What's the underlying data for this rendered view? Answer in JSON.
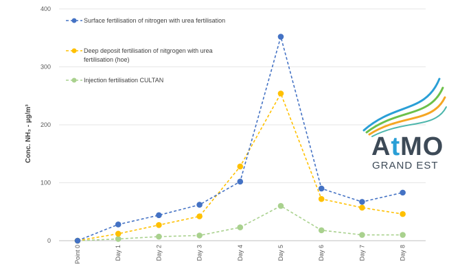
{
  "chart_data": {
    "type": "line",
    "title": "",
    "xlabel": "",
    "ylabel": "Conc. NH₃ - µg/m³",
    "ylim": [
      0,
      400
    ],
    "yticks": [
      "0",
      "100",
      "200",
      "300",
      "400"
    ],
    "categories": [
      "Point 0",
      "Day 1",
      "Day 2",
      "Day 3",
      "Day 4",
      "Day 5",
      "Day 6",
      "Day 7",
      "Day 8"
    ],
    "grid": true,
    "legend_position": "top-left",
    "series": [
      {
        "name": "Surface fertilisation of nitrogen with urea fertilisation",
        "color": "#4472c4",
        "values": [
          0,
          28,
          44,
          62,
          102,
          352,
          90,
          67,
          83
        ]
      },
      {
        "name": "Deep deposit fertilisation of nitgrogen with urea fertilisation (hoe)",
        "color": "#ffc000",
        "values": [
          0,
          12,
          27,
          42,
          128,
          254,
          72,
          57,
          46
        ]
      },
      {
        "name": "Injection fertilisation CULTAN",
        "color": "#a9d18e",
        "values": [
          0,
          3,
          7,
          9,
          23,
          60,
          18,
          10,
          10
        ]
      }
    ]
  },
  "logo": {
    "main": "AtMO",
    "main_a": "A",
    "main_t": "t",
    "main_rest": "MO",
    "sub": "GRAND EST"
  }
}
